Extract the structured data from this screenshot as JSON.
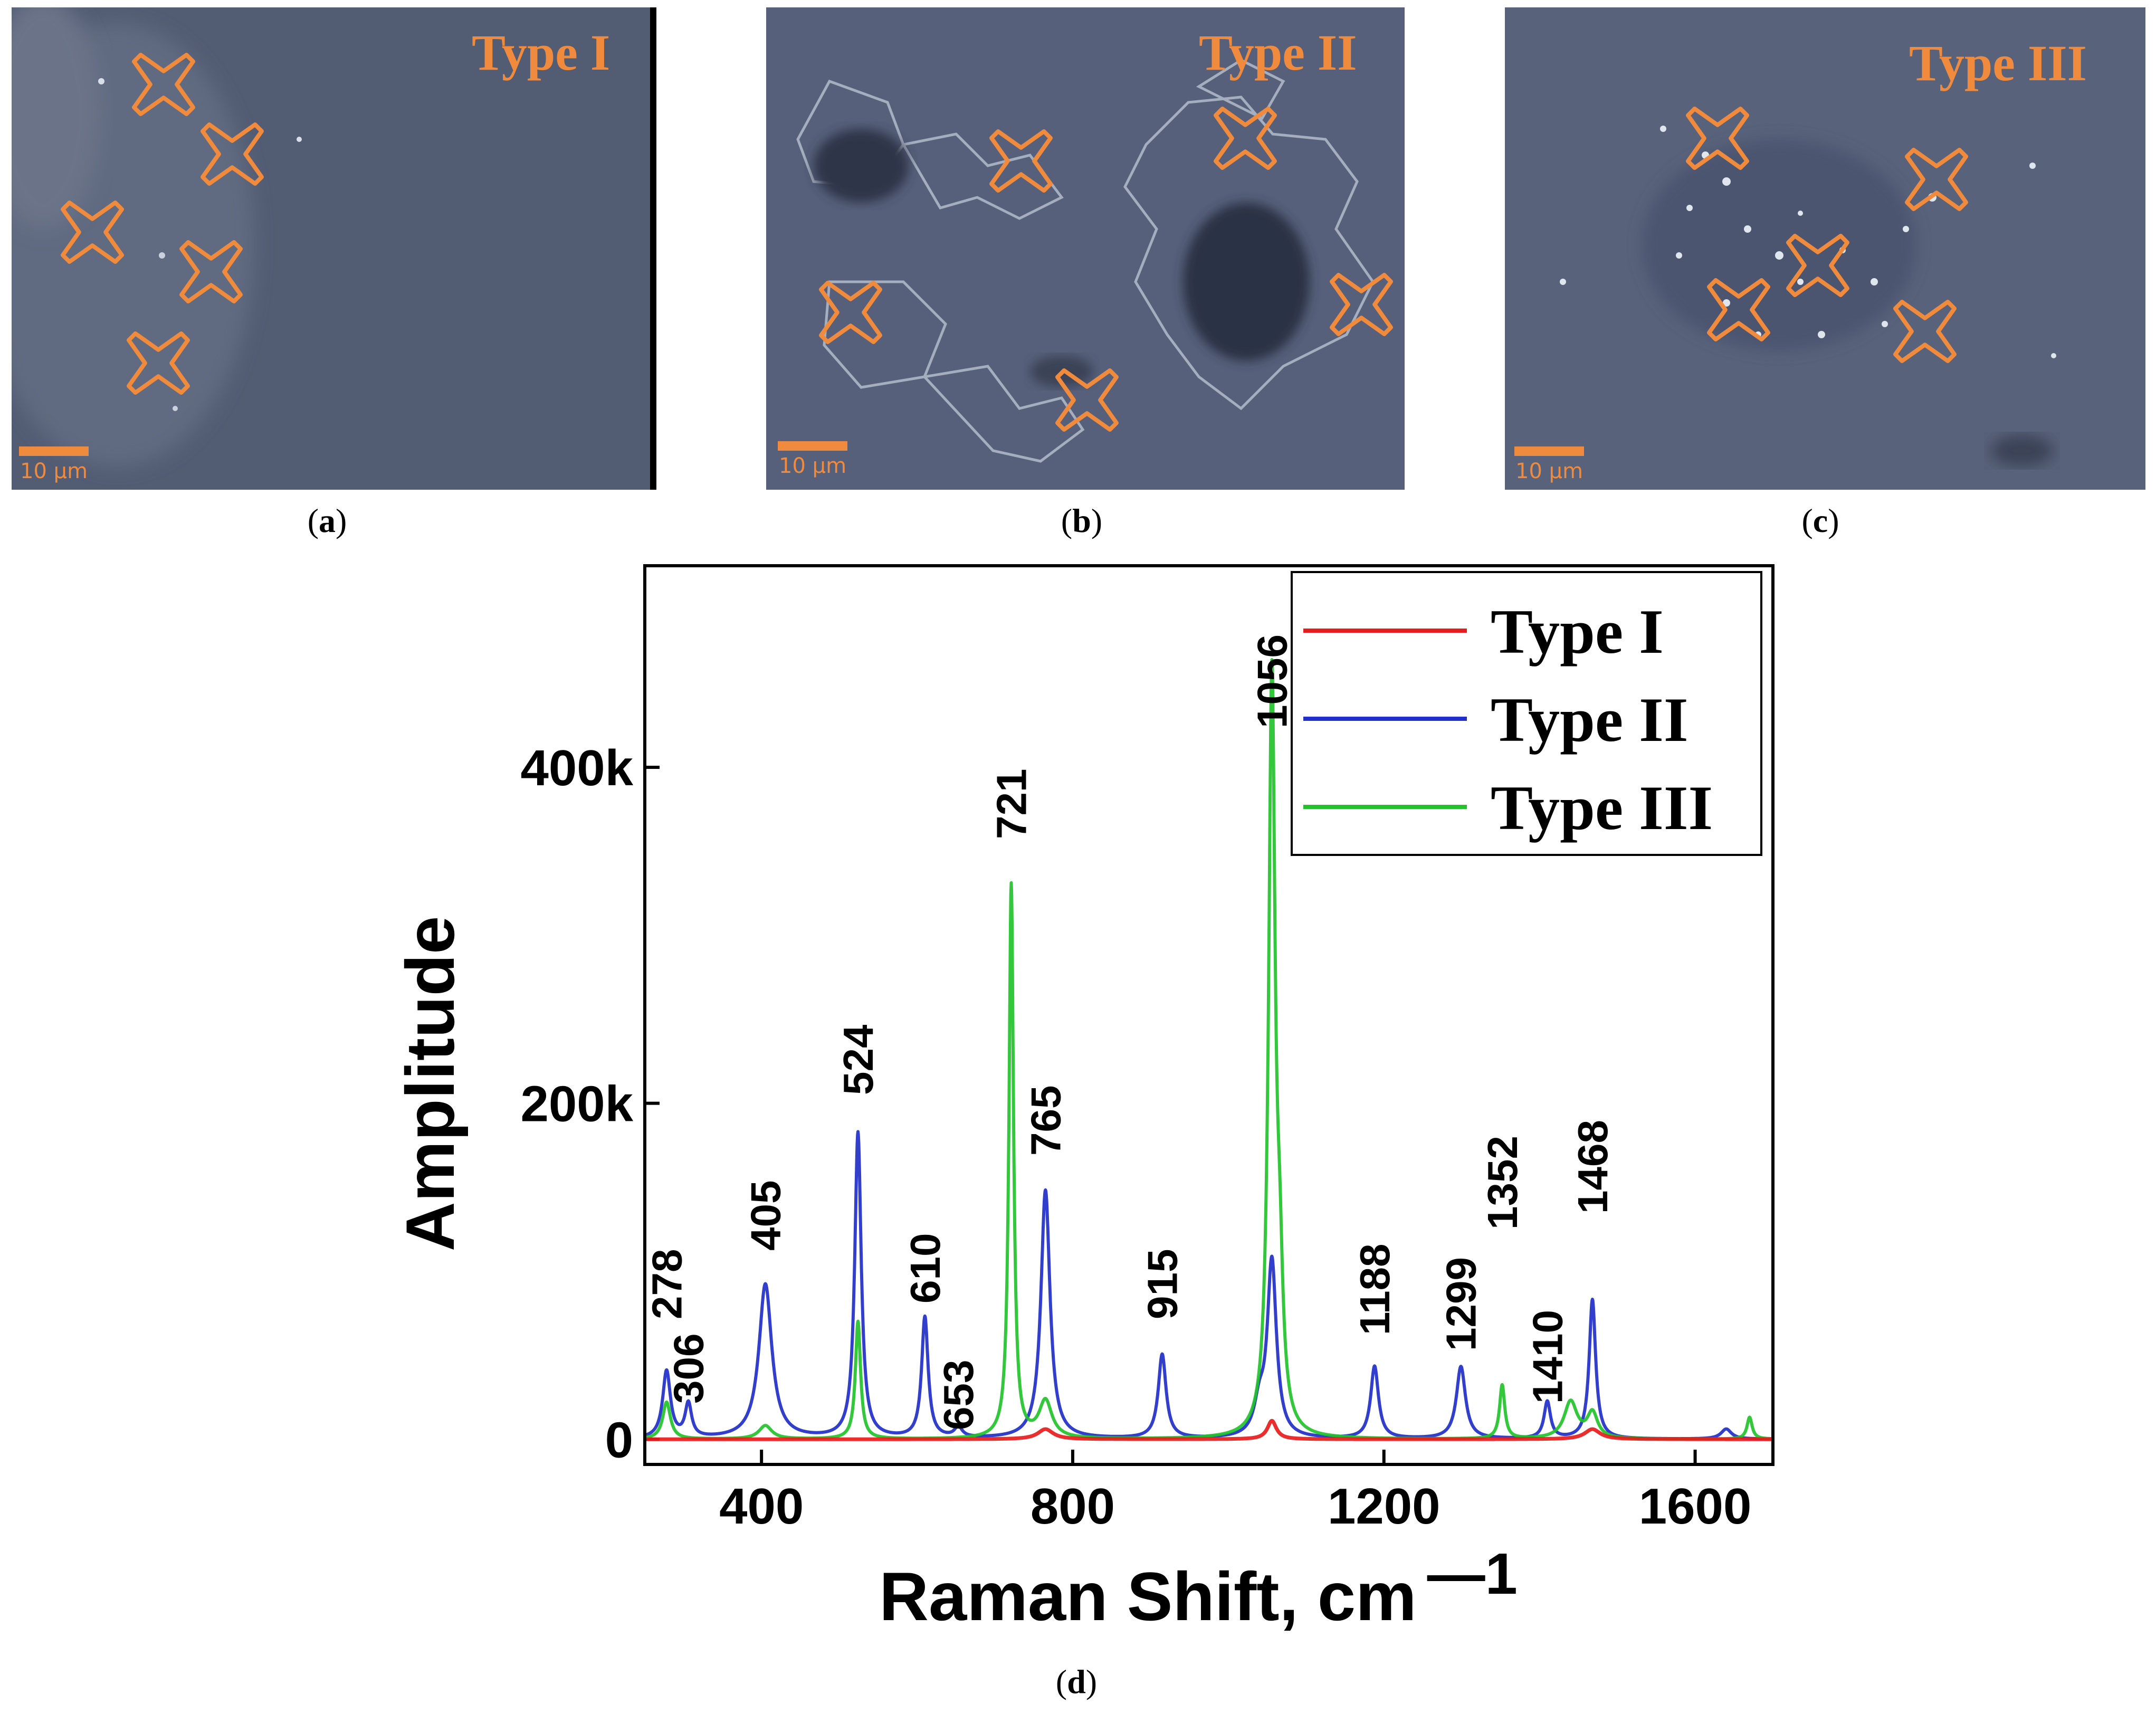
{
  "panels": [
    {
      "title": "Type I",
      "scale_label": "10 µm",
      "caption": "a"
    },
    {
      "title": "Type II",
      "scale_label": "10 µm",
      "caption": "b"
    },
    {
      "title": "Type III",
      "scale_label": "10 µm",
      "caption": "c"
    }
  ],
  "colors": {
    "marker": "#f08a3c",
    "type1": "#e81c1c",
    "type2": "#1f2fc8",
    "type3": "#22c22a",
    "micro_bg": "#4a5570"
  },
  "chart_caption": "d",
  "chart_data": {
    "type": "line",
    "xlabel": "Raman Shift, cm",
    "xlabel_superscript": "—1",
    "ylabel": "Amplitude",
    "xlim": [
      250,
      1700
    ],
    "ylim": [
      -15000,
      520000
    ],
    "x_ticks": [
      400,
      800,
      1200,
      1600
    ],
    "x_tick_labels": [
      "400",
      "800",
      "1200",
      "1600"
    ],
    "y_ticks": [
      0,
      200000,
      400000
    ],
    "y_tick_labels": [
      "0",
      "200k",
      "400k"
    ],
    "legend": {
      "position": "top-right",
      "entries": [
        "Type I",
        "Type II",
        "Type III"
      ]
    },
    "series": [
      {
        "name": "Type I",
        "color": "#e81c1c",
        "baseline": 0,
        "peaks": [
          {
            "x": 765,
            "y": 6000,
            "w": 12
          },
          {
            "x": 1056,
            "y": 11000,
            "w": 7
          },
          {
            "x": 1468,
            "y": 6000,
            "w": 12
          }
        ]
      },
      {
        "name": "Type II",
        "color": "#1f2fc8",
        "baseline": 0,
        "peaks": [
          {
            "x": 278,
            "y": 40000,
            "w": 6
          },
          {
            "x": 306,
            "y": 20000,
            "w": 5
          },
          {
            "x": 405,
            "y": 92000,
            "w": 10
          },
          {
            "x": 524,
            "y": 182000,
            "w": 5
          },
          {
            "x": 610,
            "y": 72000,
            "w": 5
          },
          {
            "x": 653,
            "y": 6000,
            "w": 6
          },
          {
            "x": 765,
            "y": 148000,
            "w": 7
          },
          {
            "x": 915,
            "y": 50000,
            "w": 6
          },
          {
            "x": 1040,
            "y": 18000,
            "w": 8
          },
          {
            "x": 1056,
            "y": 105000,
            "w": 7
          },
          {
            "x": 1188,
            "y": 43000,
            "w": 6
          },
          {
            "x": 1299,
            "y": 43000,
            "w": 7
          },
          {
            "x": 1410,
            "y": 22000,
            "w": 5
          },
          {
            "x": 1468,
            "y": 83000,
            "w": 5
          },
          {
            "x": 1640,
            "y": 6000,
            "w": 8
          }
        ]
      },
      {
        "name": "Type III",
        "color": "#22c22a",
        "baseline": 0,
        "peaks": [
          {
            "x": 278,
            "y": 22000,
            "w": 6
          },
          {
            "x": 405,
            "y": 8000,
            "w": 10
          },
          {
            "x": 524,
            "y": 70000,
            "w": 4
          },
          {
            "x": 721,
            "y": 330000,
            "w": 3.5
          },
          {
            "x": 765,
            "y": 22000,
            "w": 10
          },
          {
            "x": 1056,
            "y": 450000,
            "w": 5
          },
          {
            "x": 1066,
            "y": 70000,
            "w": 5
          },
          {
            "x": 1352,
            "y": 32000,
            "w": 4
          },
          {
            "x": 1440,
            "y": 22000,
            "w": 10
          },
          {
            "x": 1468,
            "y": 15000,
            "w": 8
          },
          {
            "x": 1670,
            "y": 13000,
            "w": 4
          }
        ]
      }
    ],
    "annotations": [
      {
        "text": "278",
        "x": 278,
        "y": 40000
      },
      {
        "text": "306",
        "x": 306,
        "y": 20000
      },
      {
        "text": "405",
        "x": 405,
        "y": 92000
      },
      {
        "text": "524",
        "x": 524,
        "y": 182000
      },
      {
        "text": "610",
        "x": 610,
        "y": 72000
      },
      {
        "text": "653",
        "x": 653,
        "y": 6000
      },
      {
        "text": "721",
        "x": 721,
        "y": 330000
      },
      {
        "text": "765",
        "x": 765,
        "y": 148000
      },
      {
        "text": "915",
        "x": 915,
        "y": 50000
      },
      {
        "text": "1056",
        "x": 1056,
        "y": 450000
      },
      {
        "text": "1188",
        "x": 1188,
        "y": 43000
      },
      {
        "text": "1299",
        "x": 1299,
        "y": 43000
      },
      {
        "text": "1352",
        "x": 1352,
        "y": 32000
      },
      {
        "text": "1410",
        "x": 1410,
        "y": 22000
      },
      {
        "text": "1468",
        "x": 1468,
        "y": 83000
      }
    ]
  }
}
